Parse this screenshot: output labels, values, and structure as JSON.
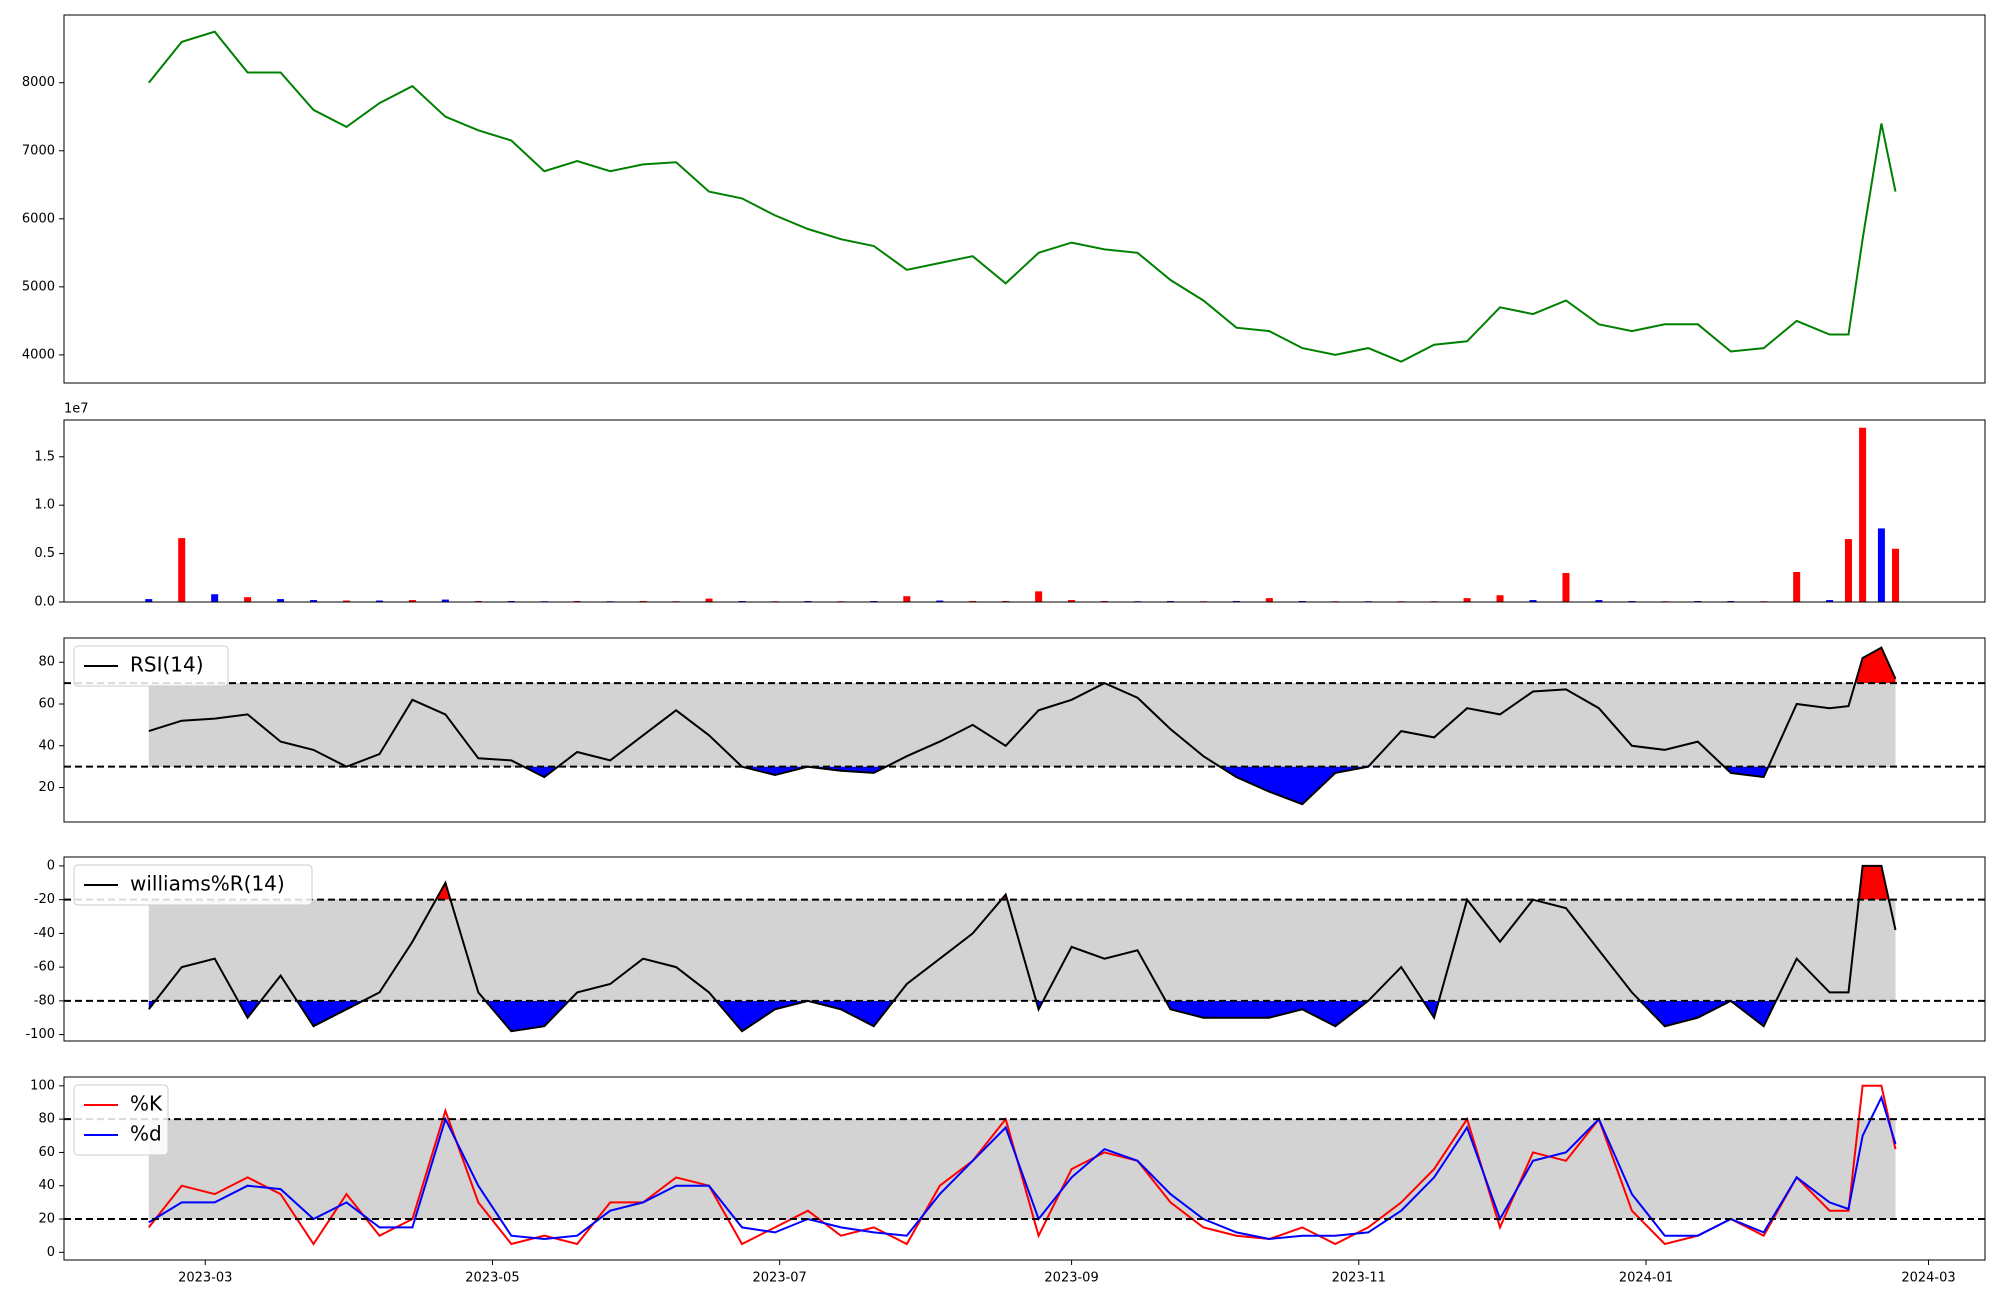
{
  "chart_data": [
    {
      "type": "line",
      "x": [
        "2023-02-17",
        "2023-02-24",
        "2023-03-03",
        "2023-03-10",
        "2023-03-17",
        "2023-03-24",
        "2023-03-31",
        "2023-04-07",
        "2023-04-14",
        "2023-04-21",
        "2023-04-28",
        "2023-05-05",
        "2023-05-12",
        "2023-05-19",
        "2023-05-26",
        "2023-06-02",
        "2023-06-09",
        "2023-06-16",
        "2023-06-23",
        "2023-06-30",
        "2023-07-07",
        "2023-07-14",
        "2023-07-21",
        "2023-07-28",
        "2023-08-04",
        "2023-08-11",
        "2023-08-18",
        "2023-08-25",
        "2023-09-01",
        "2023-09-08",
        "2023-09-15",
        "2023-09-22",
        "2023-09-29",
        "2023-10-06",
        "2023-10-13",
        "2023-10-20",
        "2023-10-27",
        "2023-11-03",
        "2023-11-10",
        "2023-11-17",
        "2023-11-24",
        "2023-12-01",
        "2023-12-08",
        "2023-12-15",
        "2023-12-22",
        "2023-12-29",
        "2024-01-05",
        "2024-01-12",
        "2024-01-19",
        "2024-01-26",
        "2024-02-02",
        "2024-02-09",
        "2024-02-13",
        "2024-02-16",
        "2024-02-20",
        "2024-02-23"
      ],
      "xlim": [
        "2023-01-30",
        "2024-03-13"
      ],
      "series": [
        {
          "color": "green",
          "values": [
            8000,
            8600,
            8750,
            8150,
            8150,
            7600,
            7350,
            7700,
            7950,
            7500,
            7300,
            7150,
            6700,
            6850,
            6700,
            6800,
            6830,
            6400,
            6300,
            6050,
            5850,
            5700,
            5600,
            5250,
            5350,
            5450,
            5050,
            5500,
            5650,
            5550,
            5500,
            5100,
            4800,
            4400,
            4350,
            4100,
            4000,
            4100,
            3900,
            4150,
            4200,
            4700,
            4600,
            4800,
            4450,
            4350,
            4450,
            4450,
            4050,
            4100,
            4500,
            4300,
            4300,
            5700,
            7400,
            6400
          ]
        }
      ],
      "ylim": [
        3587,
        8995
      ],
      "yticks": [
        4000,
        5000,
        6000,
        7000,
        8000
      ]
    },
    {
      "type": "bar",
      "values": [
        300000,
        6600000,
        800000,
        500000,
        300000,
        200000,
        150000,
        150000,
        200000,
        250000,
        100000,
        100000,
        80000,
        100000,
        80000,
        100000,
        80000,
        350000,
        100000,
        80000,
        100000,
        80000,
        100000,
        600000,
        150000,
        100000,
        100000,
        1100000,
        200000,
        100000,
        80000,
        100000,
        80000,
        100000,
        400000,
        100000,
        80000,
        80000,
        80000,
        80000,
        400000,
        700000,
        200000,
        3000000,
        200000,
        100000,
        80000,
        100000,
        100000,
        80000,
        3100000,
        200000,
        6500000,
        18000000,
        7600000,
        5500000
      ],
      "colors": [
        "blue",
        "red",
        "blue",
        "red",
        "blue",
        "blue",
        "red",
        "blue",
        "red",
        "blue",
        "red",
        "blue",
        "blue",
        "red",
        "blue",
        "red",
        "red",
        "red",
        "blue",
        "red",
        "blue",
        "red",
        "blue",
        "red",
        "blue",
        "red",
        "red",
        "red",
        "red",
        "red",
        "blue",
        "blue",
        "red",
        "blue",
        "red",
        "blue",
        "red",
        "blue",
        "red",
        "red",
        "red",
        "red",
        "blue",
        "red",
        "blue",
        "blue",
        "red",
        "blue",
        "blue",
        "red",
        "red",
        "blue",
        "red",
        "red",
        "blue",
        "red"
      ],
      "offset_label": "1e7",
      "ylim": [
        0,
        18800000
      ],
      "yticks": [
        {
          "value": 0,
          "label": "0.0"
        },
        {
          "value": 5000000,
          "label": "0.5"
        },
        {
          "value": 10000000,
          "label": "1.0"
        },
        {
          "value": 15000000,
          "label": "1.5"
        }
      ]
    },
    {
      "type": "line",
      "series": [
        {
          "name": "RSI(14)",
          "color": "black",
          "values": [
            47,
            52,
            53,
            55,
            42,
            38,
            30,
            36,
            62,
            55,
            34,
            33,
            25,
            37,
            33,
            45,
            57,
            45,
            30,
            26,
            30,
            28,
            27,
            35,
            42,
            50,
            40,
            57,
            62,
            70,
            63,
            48,
            35,
            25,
            18,
            12,
            27,
            30,
            47,
            44,
            58,
            55,
            66,
            67,
            58,
            40,
            38,
            42,
            27,
            25,
            60,
            58,
            59,
            82,
            87,
            72
          ]
        }
      ],
      "thresholds": [
        70,
        30
      ],
      "band_color": "lightgray",
      "fill_above": "red",
      "fill_below": "blue",
      "legend": "upper left",
      "ylim": [
        3.5,
        91.6
      ],
      "yticks": [
        20,
        40,
        60,
        80
      ]
    },
    {
      "type": "line",
      "series": [
        {
          "name": "williams%R(14)",
          "color": "black",
          "values": [
            -85,
            -60,
            -55,
            -90,
            -65,
            -95,
            -85,
            -75,
            -45,
            -10,
            -75,
            -98,
            -95,
            -75,
            -70,
            -55,
            -60,
            -75,
            -98,
            -85,
            -80,
            -85,
            -95,
            -70,
            -55,
            -40,
            -17,
            -85,
            -48,
            -55,
            -50,
            -85,
            -90,
            -90,
            -90,
            -85,
            -95,
            -80,
            -60,
            -90,
            -20,
            -45,
            -20,
            -25,
            -50,
            -75,
            -95,
            -90,
            -80,
            -95,
            -55,
            -75,
            -75,
            0,
            0,
            -38
          ]
        }
      ],
      "thresholds": [
        -20,
        -80
      ],
      "band_color": "lightgray",
      "fill_above": "red",
      "fill_below": "blue",
      "legend": "upper left",
      "ylim": [
        -103.8,
        5.3
      ],
      "yticks": [
        -100,
        -80,
        -60,
        -40,
        -20,
        0
      ]
    },
    {
      "type": "line",
      "series": [
        {
          "name": "%K",
          "color": "red",
          "values": [
            15,
            40,
            35,
            45,
            35,
            5,
            35,
            10,
            20,
            85,
            30,
            5,
            10,
            5,
            30,
            30,
            45,
            40,
            5,
            15,
            25,
            10,
            15,
            5,
            40,
            55,
            80,
            10,
            50,
            60,
            55,
            30,
            15,
            10,
            8,
            15,
            5,
            15,
            30,
            50,
            80,
            15,
            60,
            55,
            80,
            25,
            5,
            10,
            20,
            10,
            45,
            25,
            25,
            100,
            100,
            62
          ]
        },
        {
          "name": "%d",
          "color": "blue",
          "values": [
            18,
            30,
            30,
            40,
            38,
            20,
            30,
            15,
            15,
            80,
            40,
            10,
            8,
            10,
            25,
            30,
            40,
            40,
            15,
            12,
            20,
            15,
            12,
            10,
            35,
            55,
            75,
            20,
            45,
            62,
            55,
            35,
            20,
            12,
            8,
            10,
            10,
            12,
            25,
            45,
            75,
            20,
            55,
            60,
            80,
            35,
            10,
            10,
            20,
            12,
            45,
            30,
            26,
            70,
            93,
            65
          ]
        }
      ],
      "thresholds": [
        80,
        20
      ],
      "band_color": "lightgray",
      "legend": "upper left",
      "ylim": [
        -4.6,
        105.3
      ],
      "yticks": [
        0,
        20,
        40,
        60,
        80,
        100
      ],
      "xticks": [
        {
          "value": "2023-03-01",
          "label": "2023-03"
        },
        {
          "value": "2023-05-01",
          "label": "2023-05"
        },
        {
          "value": "2023-07-01",
          "label": "2023-07"
        },
        {
          "value": "2023-09-01",
          "label": "2023-09"
        },
        {
          "value": "2023-11-01",
          "label": "2023-11"
        },
        {
          "value": "2024-01-01",
          "label": "2024-01"
        },
        {
          "value": "2024-03-01",
          "label": "2024-03"
        }
      ]
    }
  ]
}
